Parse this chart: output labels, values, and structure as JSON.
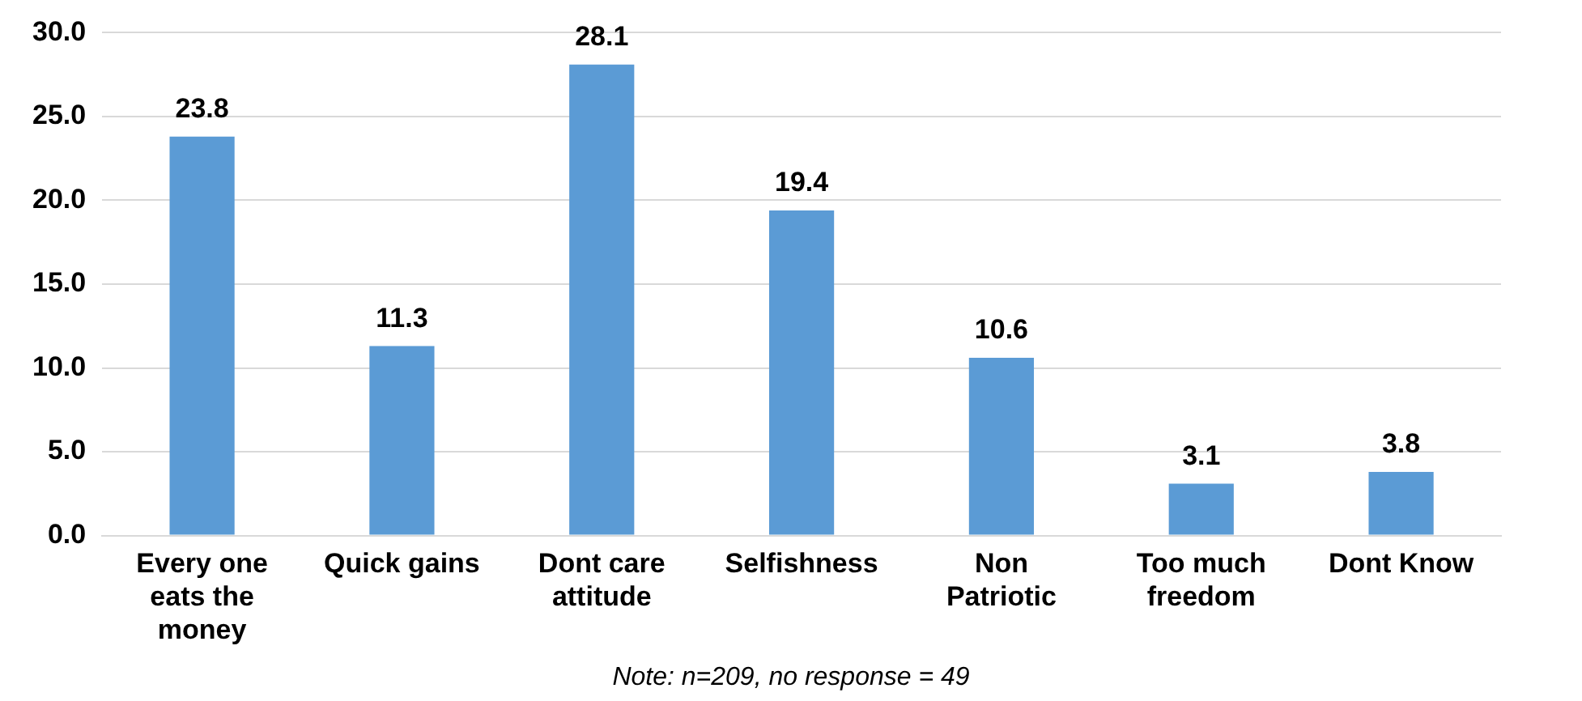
{
  "chart_data": {
    "type": "bar",
    "categories": [
      "Every one eats the money",
      "Quick gains",
      "Dont care attitude",
      "Selfishness",
      "Non Patriotic",
      "Too much freedom",
      "Dont Know"
    ],
    "values": [
      23.8,
      11.3,
      28.1,
      19.4,
      10.6,
      3.1,
      3.8
    ],
    "color": "#5b9bd5",
    "ylim": [
      0,
      30
    ],
    "yticks": [
      {
        "value": 0,
        "label": "0.0"
      },
      {
        "value": 5,
        "label": "5.0"
      },
      {
        "value": 10,
        "label": "10.0"
      },
      {
        "value": 15,
        "label": "15.0"
      },
      {
        "value": 20,
        "label": "20.0"
      },
      {
        "value": 25,
        "label": "25.0"
      },
      {
        "value": 30,
        "label": "30.0"
      }
    ],
    "grid": "y",
    "data_labels": true,
    "annotations": [
      "Note: n=209, no response = 49"
    ]
  }
}
